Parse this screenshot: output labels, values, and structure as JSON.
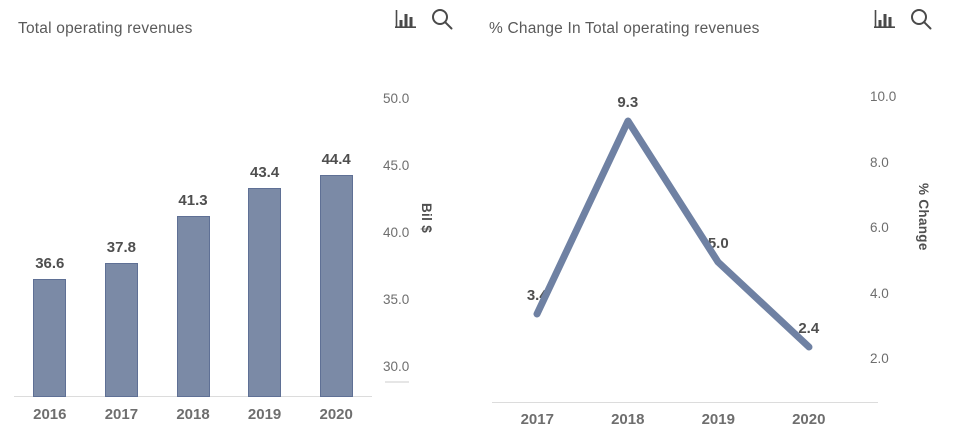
{
  "colors": {
    "bar_fill": "#7b8aa6",
    "bar_border": "#5f7095",
    "line_stroke": "#6f81a3",
    "axis_line": "#dcdcdc",
    "title_text": "#5a5a5a",
    "value_label": "#4f4f4f",
    "tick_label": "#6e6e6e",
    "category_label": "#6e6e6e",
    "icon": "#4a4a4a"
  },
  "toolbar": {
    "chart_type_icon": "bar-chart-icon",
    "zoom_icon": "search-icon"
  },
  "chart_data": [
    {
      "type": "bar",
      "title": "Total operating revenues",
      "categories": [
        "2016",
        "2017",
        "2018",
        "2019",
        "2020"
      ],
      "values": [
        36.6,
        37.8,
        41.3,
        43.4,
        44.4
      ],
      "value_labels": [
        "36.6",
        "37.8",
        "41.3",
        "43.4",
        "44.4"
      ],
      "xlabel": "",
      "ylabel": "Bil $",
      "yticks": [
        "30.0",
        "35.0",
        "40.0",
        "45.0",
        "50.0"
      ],
      "ytick_values": [
        30,
        35,
        40,
        45,
        50
      ],
      "ylim": [
        27.8,
        51.1
      ],
      "grid": false,
      "legend": "none",
      "y_axis_side": "right"
    },
    {
      "type": "line",
      "title": "% Change In Total operating revenues",
      "categories": [
        "2017",
        "2018",
        "2019",
        "2020"
      ],
      "values": [
        3.4,
        9.3,
        5.0,
        2.4
      ],
      "value_labels": [
        "3.4",
        "9.3",
        "5.0",
        "2.4"
      ],
      "xlabel": "",
      "ylabel": "% Change",
      "yticks": [
        "2.0",
        "4.0",
        "6.0",
        "8.0",
        "10.0"
      ],
      "ytick_values": [
        2,
        4,
        6,
        8,
        10
      ],
      "ylim": [
        0.7,
        10.4
      ],
      "grid": false,
      "legend": "none",
      "y_axis_side": "right"
    }
  ]
}
